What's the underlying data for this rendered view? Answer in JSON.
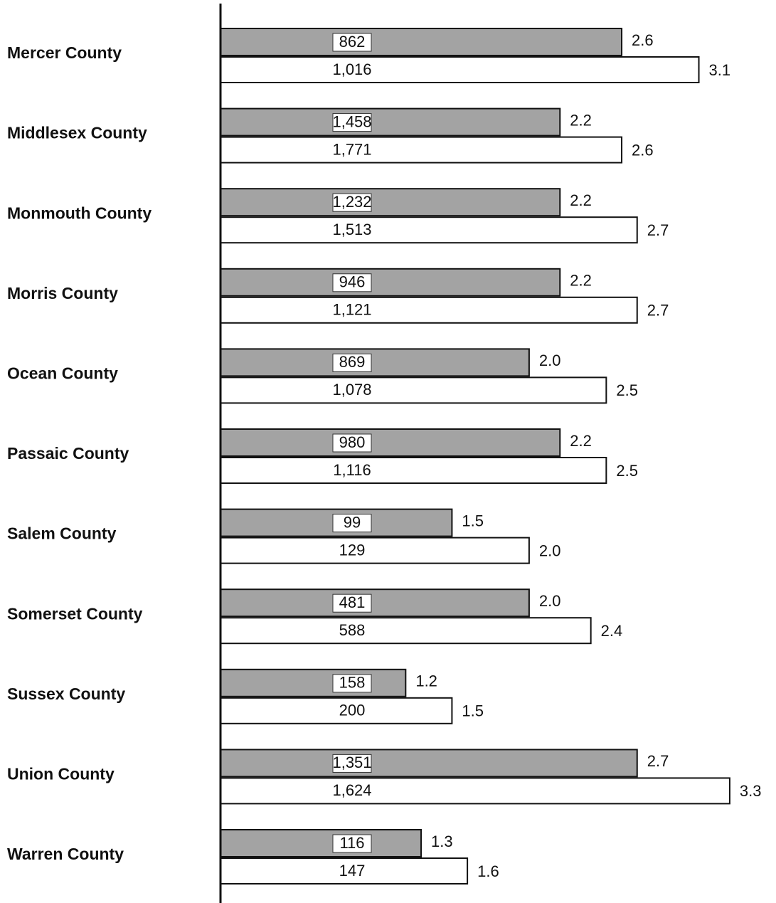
{
  "chart_data": {
    "type": "bar",
    "orientation": "horizontal",
    "categories": [
      "Mercer County",
      "Middlesex County",
      "Monmouth County",
      "Morris County",
      "Ocean County",
      "Passaic County",
      "Salem County",
      "Somerset County",
      "Sussex County",
      "Union County",
      "Warren County"
    ],
    "xlim": [
      0,
      3.6
    ],
    "series": [
      {
        "color": "#a3a3a3",
        "values": [
          2.6,
          2.2,
          2.2,
          2.2,
          2.0,
          2.2,
          1.5,
          2.0,
          1.2,
          2.7,
          1.3
        ],
        "value_labels": [
          "2.6",
          "2.2",
          "2.2",
          "2.2",
          "2.0",
          "2.2",
          "1.5",
          "2.0",
          "1.2",
          "2.7",
          "1.3"
        ],
        "counts": [
          862,
          1458,
          1232,
          946,
          869,
          980,
          99,
          481,
          158,
          1351,
          116
        ],
        "count_labels": [
          "862",
          "1,458",
          "1,232",
          "946",
          "869",
          "980",
          "99",
          "481",
          "158",
          "1,351",
          "116"
        ]
      },
      {
        "color": "#ffffff",
        "values": [
          3.1,
          2.6,
          2.7,
          2.7,
          2.5,
          2.5,
          2.0,
          2.4,
          1.5,
          3.3,
          1.6
        ],
        "value_labels": [
          "3.1",
          "2.6",
          "2.7",
          "2.7",
          "2.5",
          "2.5",
          "2.0",
          "2.4",
          "1.5",
          "3.3",
          "1.6"
        ],
        "counts": [
          1016,
          1771,
          1513,
          1121,
          1078,
          1116,
          129,
          588,
          200,
          1624,
          147
        ],
        "count_labels": [
          "1,016",
          "1,771",
          "1,513",
          "1,121",
          "1,078",
          "1,116",
          "129",
          "588",
          "200",
          "1,624",
          "147"
        ]
      }
    ]
  }
}
